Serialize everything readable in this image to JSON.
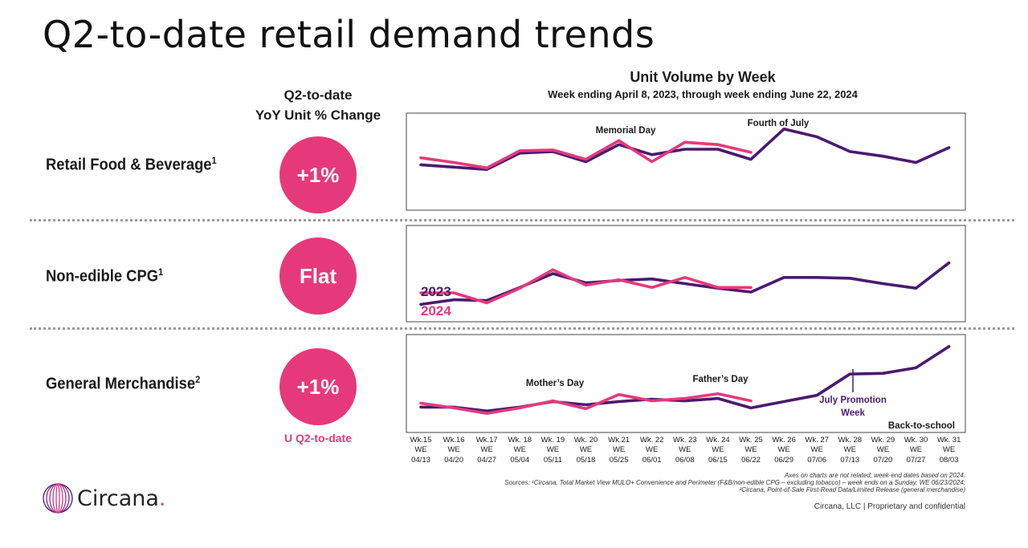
{
  "page": {
    "title": "Q2-to-date retail demand trends",
    "yoy_header_line1": "Q2-to-date",
    "yoy_header_line2": "YoY Unit % Change",
    "q2_note": "U Q2-to-date",
    "footnote_lines": [
      "Axes on charts are not related; week-end dates based on 2024.",
      "Sources: ¹Circana, Total Market View MULO+ Convenience and Perimeter (F&B/non-edible CPG – excluding tobacco) – week ends on a Sunday, WE 06/23/2024;",
      "²Circana, Point-of-Sale First-Read Data/Limited Release (general merchandise)"
    ],
    "confidential": "Circana, LLC | Proprietary and confidential",
    "logo_text": "Circana",
    "logo_dot": "."
  },
  "rows": [
    {
      "label": "Retail Food & Beverage",
      "sup": "1",
      "yoy": "+1%"
    },
    {
      "label": "Non-edible CPG",
      "sup": "1",
      "yoy": "Flat"
    },
    {
      "label": "General Merchandise",
      "sup": "2",
      "yoy": "+1%"
    }
  ],
  "chart_data": {
    "type": "line",
    "title": "Unit Volume by Week",
    "subtitle": "Week ending April 8, 2023, through week ending June 22, 2024",
    "colors": {
      "2023": "#4b1a6e",
      "2024": "#e6397b",
      "accent": "#e6397b"
    },
    "x_week": [
      "Wk.15",
      "Wk.16",
      "Wk.17",
      "Wk. 18",
      "Wk. 19",
      "Wk. 20",
      "Wk.21",
      "Wk. 22",
      "Wk. 23",
      "Wk. 24",
      "Wk. 25",
      "Wk. 26",
      "Wk. 27",
      "Wk. 28",
      "Wk. 29",
      "Wk. 30",
      "Wk. 31"
    ],
    "x_we": "WE",
    "x_dates": [
      "04/13",
      "04/20",
      "04/27",
      "05/04",
      "05/11",
      "05/18",
      "05/25",
      "06/01",
      "06/08",
      "06/15",
      "06/22",
      "06/29",
      "07/06",
      "07/13",
      "07/20",
      "07/27",
      "08/03"
    ],
    "y_axis_shown": false,
    "legend": {
      "2023": "2023",
      "2024": "2024"
    },
    "panels": [
      {
        "name": "Retail Food & Beverage",
        "ylim": [
          0,
          100
        ],
        "series": [
          {
            "name": "2023",
            "values": [
              46,
              43,
              40,
              61,
              63,
              50,
              72,
              59,
              66,
              66,
              53,
              92,
              82,
              63,
              57,
              49,
              68
            ]
          },
          {
            "name": "2024",
            "values": [
              55,
              49,
              42,
              64,
              65,
              53,
              77,
              50,
              75,
              72,
              62
            ]
          }
        ],
        "annotations": [
          "Memorial Day",
          "Fourth of July"
        ]
      },
      {
        "name": "Non-edible CPG",
        "ylim": [
          0,
          100
        ],
        "series": [
          {
            "name": "2023",
            "values": [
              10,
              16,
              15,
              32,
              50,
              38,
              41,
              43,
              37,
              31,
              26,
              45,
              45,
              44,
              37,
              31,
              64
            ]
          },
          {
            "name": "2024",
            "values": [
              25,
              25,
              12,
              31,
              55,
              35,
              42,
              32,
              45,
              32,
              32
            ]
          }
        ],
        "annotations": []
      },
      {
        "name": "General Merchandise",
        "ylim": [
          0,
          100
        ],
        "series": [
          {
            "name": "2023",
            "values": [
              20,
              20,
              15,
              20,
              27,
              23,
              27,
              30,
              28,
              31,
              19,
              27,
              35,
              62,
              63,
              70,
              97
            ]
          },
          {
            "name": "2024",
            "values": [
              25,
              19,
              12,
              19,
              28,
              18,
              36,
              28,
              31,
              37,
              28
            ]
          }
        ],
        "annotations": [
          "Mother’s Day",
          "Father’s Day",
          "July Promotion Week",
          "Back-to-school"
        ]
      }
    ]
  }
}
